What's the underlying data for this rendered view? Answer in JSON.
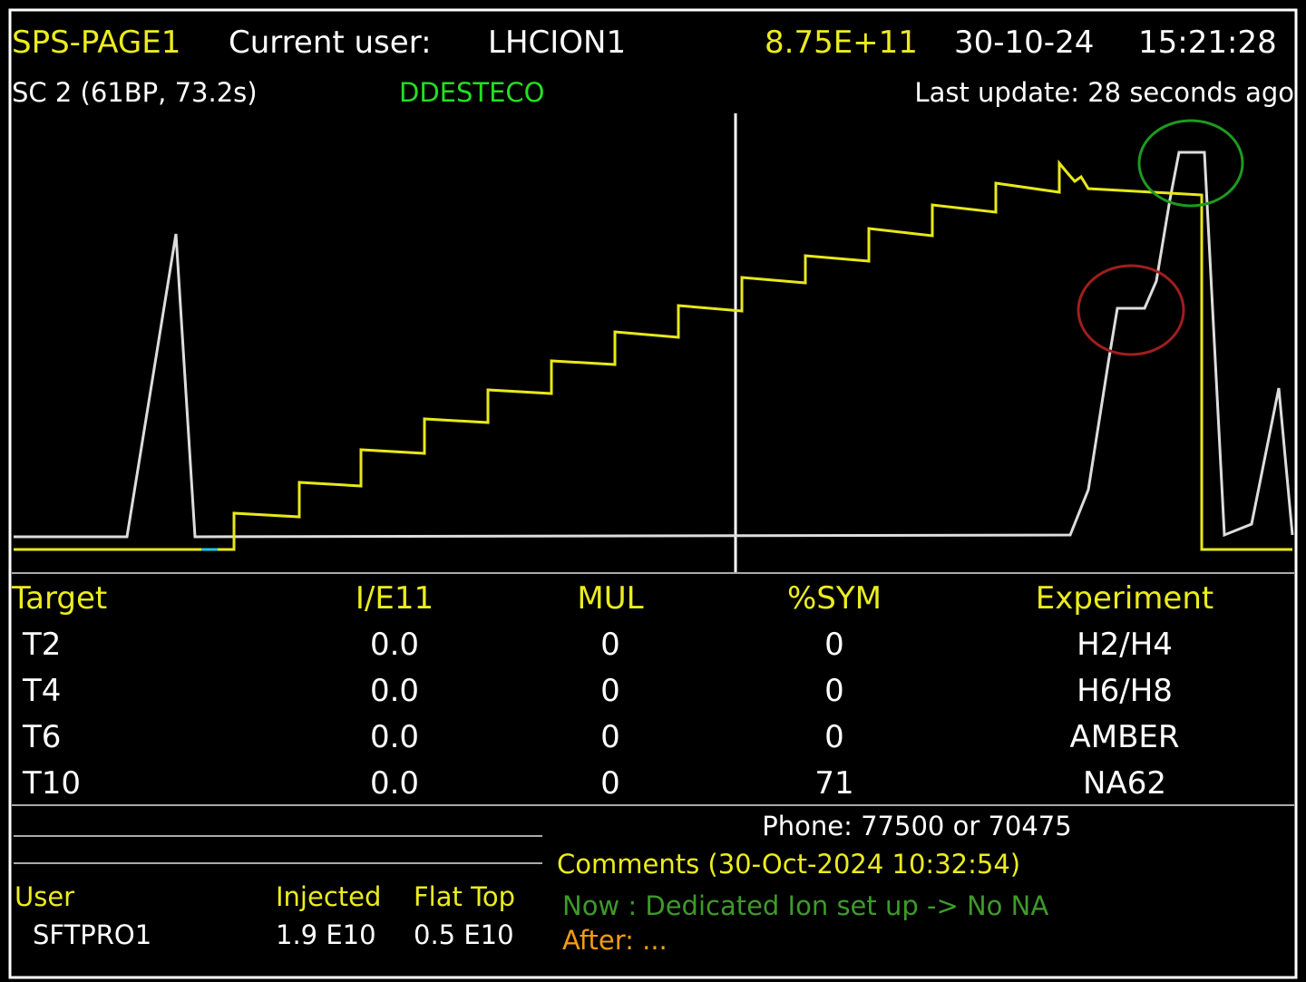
{
  "header": {
    "page": "SPS-PAGE1",
    "user_label": "Current user:",
    "user": "LHCION1",
    "intensity": "8.75E+11",
    "date": "30-10-24",
    "time": "15:21:28"
  },
  "subheader": {
    "cycle": "SC 2 (61BP, 73.2s)",
    "operator": "DDESTECO",
    "last_update": "Last update: 28 seconds ago"
  },
  "table": {
    "columns": [
      "Target",
      "I/E11",
      "MUL",
      "%SYM",
      "Experiment"
    ],
    "rows": [
      [
        "T2",
        "0.0",
        "0",
        "0",
        "H2/H4"
      ],
      [
        "T4",
        "0.0",
        "0",
        "0",
        "H6/H8"
      ],
      [
        "T6",
        "0.0",
        "0",
        "0",
        "AMBER"
      ],
      [
        "T10",
        "0.0",
        "0",
        "71",
        "NA62"
      ]
    ]
  },
  "user_table": {
    "columns": [
      "User",
      "Injected",
      "Flat Top"
    ],
    "rows": [
      [
        "SFTPRO1",
        "1.9 E10",
        "0.5 E10"
      ]
    ]
  },
  "info": {
    "phone": "Phone: 77500 or 70475",
    "comments": "Comments (30-Oct-2024 10:32:54)",
    "now": "Now : Dedicated Ion set up -> No NA",
    "after": "After: ..."
  }
}
